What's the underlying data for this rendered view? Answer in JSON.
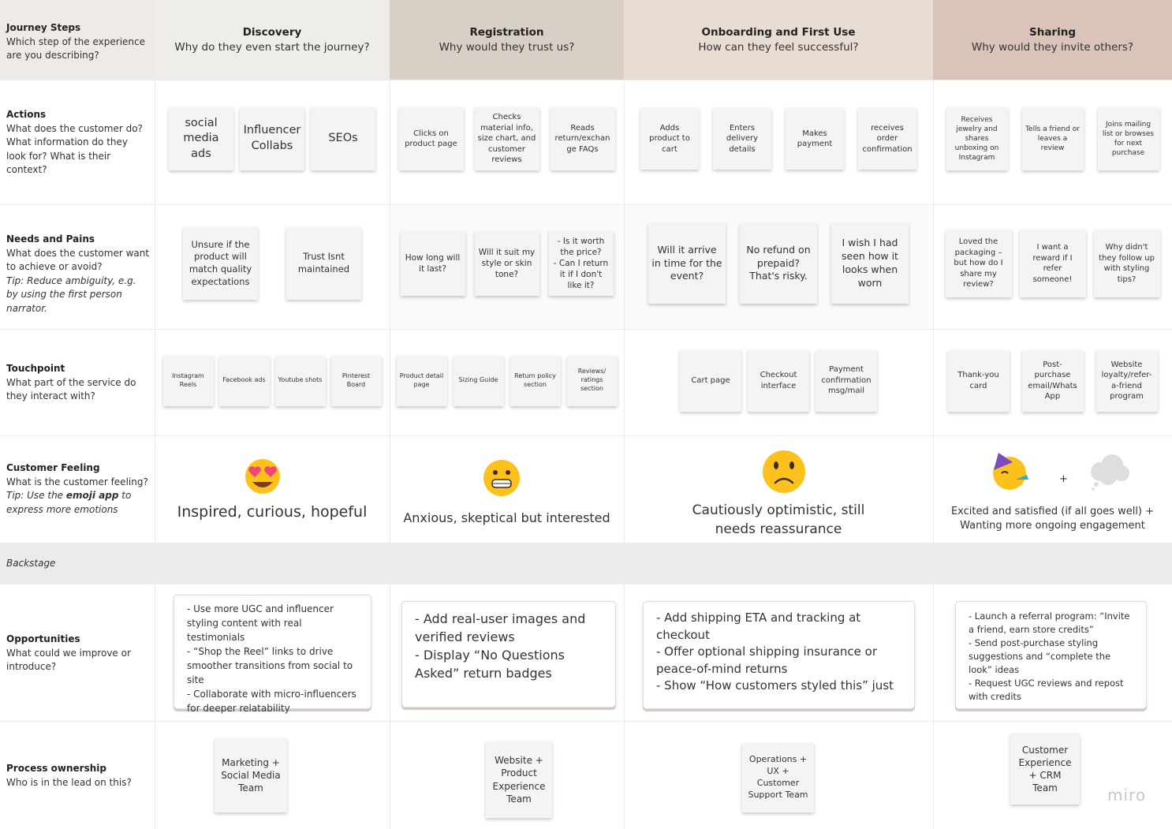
{
  "header": {
    "title": "Journey Steps",
    "text": "Which step of the experience are you describing?"
  },
  "stages": [
    {
      "title": "Discovery",
      "question": "Why do they even start the journey?"
    },
    {
      "title": "Registration",
      "question": "Why would they trust us?"
    },
    {
      "title": "Onboarding and First Use",
      "question": "How can they feel successful?"
    },
    {
      "title": "Sharing",
      "question": "Why would they invite others?"
    }
  ],
  "actions": {
    "title": "Actions",
    "text": "What does the customer do? What information do they look for? What is their context?",
    "cells": [
      [
        "social media ads",
        "Influencer Collabs",
        "SEOs"
      ],
      [
        "Clicks on product page",
        "Checks material info, size chart, and customer reviews",
        "Reads return/exchange FAQs"
      ],
      [
        "Adds product to cart",
        "Enters delivery details",
        "Makes payment",
        "receives order confirmation"
      ],
      [
        "Receives jewelry and shares unboxing on Instagram",
        "Tells a friend or leaves a review",
        "Joins mailing list or browses for next purchase"
      ]
    ]
  },
  "needs": {
    "title": "Needs and Pains",
    "text": "What does the customer want to achieve or avoid?",
    "tip": "Tip: Reduce ambiguity, e.g. by using the first person narrator.",
    "cells": [
      [
        "Unsure if the product will match quality expectations",
        "Trust Isnt maintained"
      ],
      [
        "How long will it last?",
        "Will it suit my style or skin tone?",
        "- Is it worth the price?\n- Can I return it if I don't like it?"
      ],
      [
        "Will it arrive in time for the event?",
        "No refund on prepaid? That's risky.",
        "I wish I had seen how it looks when worn"
      ],
      [
        "Loved the packaging – but how do I share my review?",
        "I want a reward if I refer someone!",
        "Why didn't they follow up with styling tips?"
      ]
    ]
  },
  "touchpoint": {
    "title": "Touchpoint",
    "text": "What part of the service do they interact with?",
    "cells": [
      [
        "Instagram Reels",
        "Facebook ads",
        "Youtube shots",
        "Pinterest Board"
      ],
      [
        "Product detail page",
        "Sizing Guide",
        "Return policy section",
        "Reviews/ ratings section"
      ],
      [
        "Cart page",
        "Checkout interface",
        "Payment confirmation msg/mail"
      ],
      [
        "Thank-you card",
        "Post-purchase email/Whats App",
        "Website loyalty/refer-a-friend program"
      ]
    ]
  },
  "feeling": {
    "title": "Customer Feeling",
    "text": "What is the customer feeling?",
    "tip": [
      "Tip: Use the ",
      "emoji app",
      " to express more emotions"
    ],
    "cells": [
      "Inspired, curious, hopeful",
      "Anxious, skeptical but interested",
      "Cautiously optimistic, still needs reassurance",
      "Excited and satisfied (if all goes well) + Wanting more ongoing engagement"
    ],
    "plus": "+"
  },
  "backstage": {
    "title": "Backstage"
  },
  "opportunities": {
    "title": "Opportunities",
    "text": "What could we improve or introduce?",
    "cells": [
      [
        "- Use more UGC and influencer styling content with real testimonials",
        "- “Shop the Reel” links to drive smoother transitions from social to site",
        "- Collaborate with micro-influencers for deeper relatability"
      ],
      [
        "- Add real-user images and verified reviews",
        "- Display “No Questions Asked” return badges"
      ],
      [
        "- Add shipping ETA and tracking at checkout",
        "- Offer optional shipping insurance or peace-of-mind returns",
        "- Show “How customers styled this” just"
      ],
      [
        "- Launch a referral program: “Invite a friend, earn store credits”",
        "- Send post-purchase styling suggestions and “complete the look” ideas",
        "- Request UGC reviews and repost with credits"
      ]
    ]
  },
  "process": {
    "title": "Process ownership",
    "text": "Who is in the lead on this?",
    "cells": [
      "Marketing + Social Media Team",
      "Website + Product Experience Team",
      "Operations + UX + Customer Support Team",
      "Customer Experience + CRM Team"
    ]
  },
  "watermark": "miro"
}
